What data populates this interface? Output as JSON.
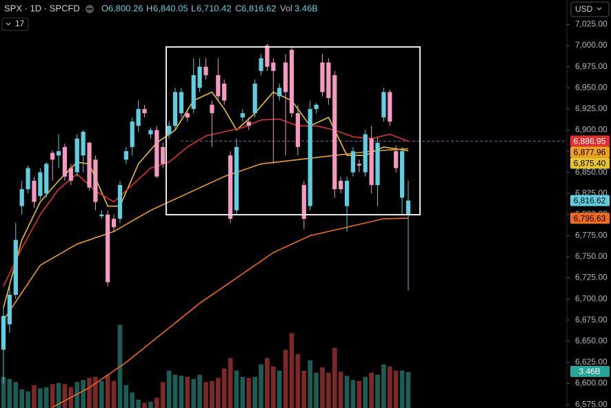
{
  "header": {
    "symbol": "SPX · 1D · SPCFD",
    "open_label": "O",
    "open": "6,800.26",
    "high_label": "H",
    "high": "6,840.05",
    "low_label": "L",
    "low": "6,710.42",
    "close_label": "C",
    "close": "6,816.62",
    "vol_label": "Vol",
    "vol": "3.46B",
    "interval_count": "17",
    "currency": "USD"
  },
  "chart_data": {
    "type": "candlestick",
    "ylim": [
      6571,
      7054
    ],
    "yticks": [
      {
        "value": 7025,
        "label": "7,025.00"
      },
      {
        "value": 7000,
        "label": "7,000.00"
      },
      {
        "value": 6975,
        "label": "6,975.00"
      },
      {
        "value": 6950,
        "label": "6,950.00"
      },
      {
        "value": 6925,
        "label": "6,925.00"
      },
      {
        "value": 6900,
        "label": "6,900.00"
      },
      {
        "value": 6875,
        "label": "6,875.00"
      },
      {
        "value": 6850,
        "label": "6,850.00"
      },
      {
        "value": 6825,
        "label": "6,825.00"
      },
      {
        "value": 6800,
        "label": "6,800.00"
      },
      {
        "value": 6775,
        "label": "6,775.00"
      },
      {
        "value": 6750,
        "label": "6,750.00"
      },
      {
        "value": 6725,
        "label": "6,725.00"
      },
      {
        "value": 6700,
        "label": "6,700.00"
      },
      {
        "value": 6675,
        "label": "6,675.00"
      },
      {
        "value": 6650,
        "label": "6,650.00"
      },
      {
        "value": 6625,
        "label": "6,625.00"
      },
      {
        "value": 6600,
        "label": "6,600.00"
      },
      {
        "value": 6575,
        "label": "6,575.00"
      }
    ],
    "up_color": "#5fcfe0",
    "down_color": "#f49ac1",
    "open": [
      6640,
      6670,
      6705,
      6810,
      6830,
      6840,
      6822,
      6825,
      6873,
      6870,
      6880,
      6855,
      6850,
      6870,
      6885,
      6865,
      6798,
      6800,
      6795,
      6795,
      6865,
      6880,
      6905,
      6925,
      6895,
      6900,
      6880,
      6895,
      6905,
      6920,
      6920,
      6925,
      6950,
      6975,
      6930,
      6965,
      6955,
      6870,
      6805,
      6915,
      6910,
      6920,
      6970,
      7000,
      6980,
      6940,
      6980,
      6995,
      6920,
      6835,
      6810,
      6925,
      6980,
      6980,
      6965,
      6840,
      6810,
      6850,
      6860,
      6850,
      6890,
      6835,
      6915,
      6945,
      6875,
      6820,
      6800.26
    ],
    "high": [
      6690,
      6715,
      6790,
      6840,
      6858,
      6845,
      6855,
      6862,
      6876,
      6895,
      6884,
      6860,
      6895,
      6900,
      6886,
      6870,
      6805,
      6805,
      6800,
      6840,
      6880,
      6915,
      6935,
      6930,
      6903,
      6905,
      6885,
      6910,
      6950,
      6950,
      6925,
      6985,
      6985,
      6985,
      6935,
      6985,
      6960,
      6875,
      6890,
      6925,
      6915,
      6960,
      6990,
      7002,
      6985,
      6955,
      6990,
      6998,
      6930,
      6840,
      6935,
      6932,
      6990,
      6985,
      6970,
      6845,
      6845,
      6880,
      6865,
      6900,
      6905,
      6892,
      6950,
      6948,
      6882,
      6880,
      6840.05
    ],
    "low": [
      6600,
      6660,
      6700,
      6800,
      6825,
      6808,
      6818,
      6820,
      6840,
      6855,
      6840,
      6835,
      6845,
      6850,
      6828,
      6805,
      6795,
      6715,
      6780,
      6790,
      6860,
      6870,
      6898,
      6915,
      6890,
      6843,
      6855,
      6890,
      6900,
      6915,
      6910,
      6920,
      6945,
      6960,
      6880,
      6935,
      6930,
      6790,
      6800,
      6910,
      6900,
      6915,
      6965,
      6970,
      6860,
      6935,
      6870,
      6915,
      6870,
      6783,
      6805,
      6920,
      6940,
      6930,
      6820,
      6825,
      6780,
      6845,
      6850,
      6845,
      6825,
      6810,
      6910,
      6905,
      6850,
      6800,
      6710.42
    ],
    "close": [
      6680,
      6705,
      6770,
      6830,
      6855,
      6815,
      6850,
      6860,
      6865,
      6875,
      6845,
      6840,
      6890,
      6898,
      6832,
      6815,
      6800,
      6720,
      6785,
      6835,
      6875,
      6910,
      6925,
      6920,
      6900,
      6845,
      6860,
      6905,
      6945,
      6945,
      6915,
      6965,
      6975,
      6965,
      6920,
      6940,
      6935,
      6795,
      6880,
      6920,
      6905,
      6955,
      6985,
      6975,
      6970,
      6950,
      6945,
      6920,
      6880,
      6795,
      6925,
      6930,
      6945,
      6938,
      6830,
      6830,
      6840,
      6875,
      6858,
      6895,
      6835,
      6885,
      6945,
      6910,
      6855,
      6875,
      6816.62
    ],
    "moving_averages": [
      {
        "color": "#e8c32e",
        "x": [
          0,
          3,
          6,
          9,
          12,
          14,
          17,
          19,
          22,
          25,
          28,
          31,
          34,
          36,
          38,
          41,
          44,
          47,
          50,
          53,
          56,
          59,
          62,
          66
        ],
        "values": [
          6690,
          6770,
          6815,
          6840,
          6862,
          6860,
          6810,
          6810,
          6860,
          6885,
          6900,
          6935,
          6945,
          6925,
          6900,
          6920,
          6945,
          6935,
          6905,
          6915,
          6870,
          6870,
          6880,
          6875.4
        ],
        "last_label": "6,875.40"
      },
      {
        "color": "#e03030",
        "x": [
          0,
          3,
          6,
          9,
          12,
          15,
          18,
          21,
          24,
          27,
          30,
          33,
          36,
          39,
          42,
          45,
          48,
          51,
          54,
          57,
          60,
          63,
          66
        ],
        "values": [
          6715,
          6760,
          6800,
          6830,
          6848,
          6828,
          6815,
          6835,
          6855,
          6862,
          6880,
          6893,
          6898,
          6903,
          6912,
          6913,
          6905,
          6905,
          6900,
          6892,
          6890,
          6895,
          6886.95
        ],
        "last_label": "6,886.95"
      },
      {
        "color": "#f0a020",
        "x": [
          0,
          6,
          12,
          18,
          24,
          30,
          36,
          42,
          48,
          54,
          60,
          66
        ],
        "values": [
          6675,
          6740,
          6765,
          6780,
          6805,
          6825,
          6845,
          6860,
          6865,
          6870,
          6875,
          6877.96
        ],
        "last_label": "6,877.96"
      },
      {
        "color": "#f26a1b",
        "x": [
          8,
          14,
          20,
          26,
          32,
          38,
          44,
          50,
          56,
          62,
          66
        ],
        "values": [
          6572,
          6595,
          6625,
          6660,
          6695,
          6725,
          6755,
          6775,
          6785,
          6795,
          6795.63
        ],
        "last_label": "6,795.63"
      }
    ],
    "volume": {
      "vlim": [
        0,
        16
      ],
      "up_color": "#1d5c55",
      "down_color": "#7a2828",
      "values": [
        3.0,
        2.8,
        2.5,
        1.8,
        1.6,
        2.2,
        1.9,
        2.0,
        2.3,
        2.4,
        2.3,
        2.0,
        2.5,
        2.7,
        2.9,
        3.0,
        2.6,
        3.2,
        2.6,
        8.0,
        2.2,
        1.5,
        0.8,
        0.5,
        0.6,
        1.0,
        2.5,
        3.6,
        3.2,
        3.1,
        3.0,
        2.8,
        3.2,
        2.5,
        2.6,
        2.9,
        3.8,
        4.8,
        3.6,
        3.0,
        2.9,
        3.0,
        4.2,
        4.8,
        4.0,
        3.6,
        5.6,
        7.2,
        5.2,
        3.6,
        4.6,
        3.4,
        3.9,
        3.4,
        5.8,
        3.5,
        3.1,
        2.7,
        2.6,
        3.0,
        3.4,
        3.2,
        4.2,
        4.0,
        3.6,
        3.6,
        3.46
      ],
      "last_label": "3.46B",
      "label_color": "#26a69a"
    }
  }
}
